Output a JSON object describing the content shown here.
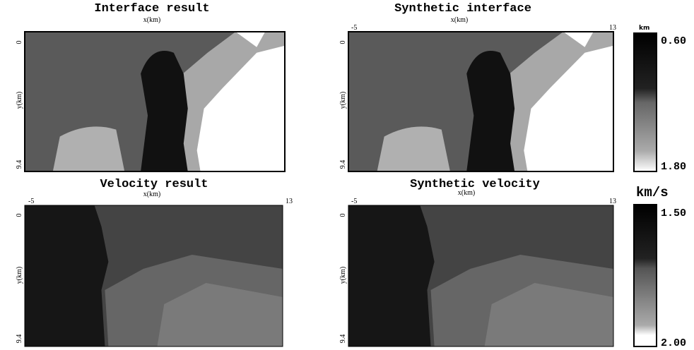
{
  "panels": [
    {
      "title": "Interface result",
      "x_label": "x(km)",
      "y_label": "y(km)",
      "y_ticks": [
        "0",
        "9.4"
      ]
    },
    {
      "title": "Synthetic interface",
      "x_label": "x(km)",
      "y_label": "y(km)",
      "x_ticks": [
        "-5",
        "13"
      ],
      "y_ticks": [
        "0",
        "9.4"
      ]
    },
    {
      "title": "Velocity result",
      "x_label": "x(km)",
      "x_ticks": [
        "-5",
        "13"
      ],
      "y_ticks": [
        "0",
        "9.4"
      ],
      "y_label": "y(km)"
    },
    {
      "title": "Synthetic velocity",
      "x_label": "x(km)",
      "y_label": "y(km)",
      "x_ticks": [
        "-5",
        "13"
      ],
      "y_ticks": [
        "0",
        "9.4"
      ]
    }
  ],
  "colorbars": [
    {
      "unit": "km",
      "ticks": [
        "0.60",
        "1.80"
      ]
    },
    {
      "unit": "km/s",
      "ticks": [
        "1.50",
        "2.00"
      ]
    }
  ]
}
